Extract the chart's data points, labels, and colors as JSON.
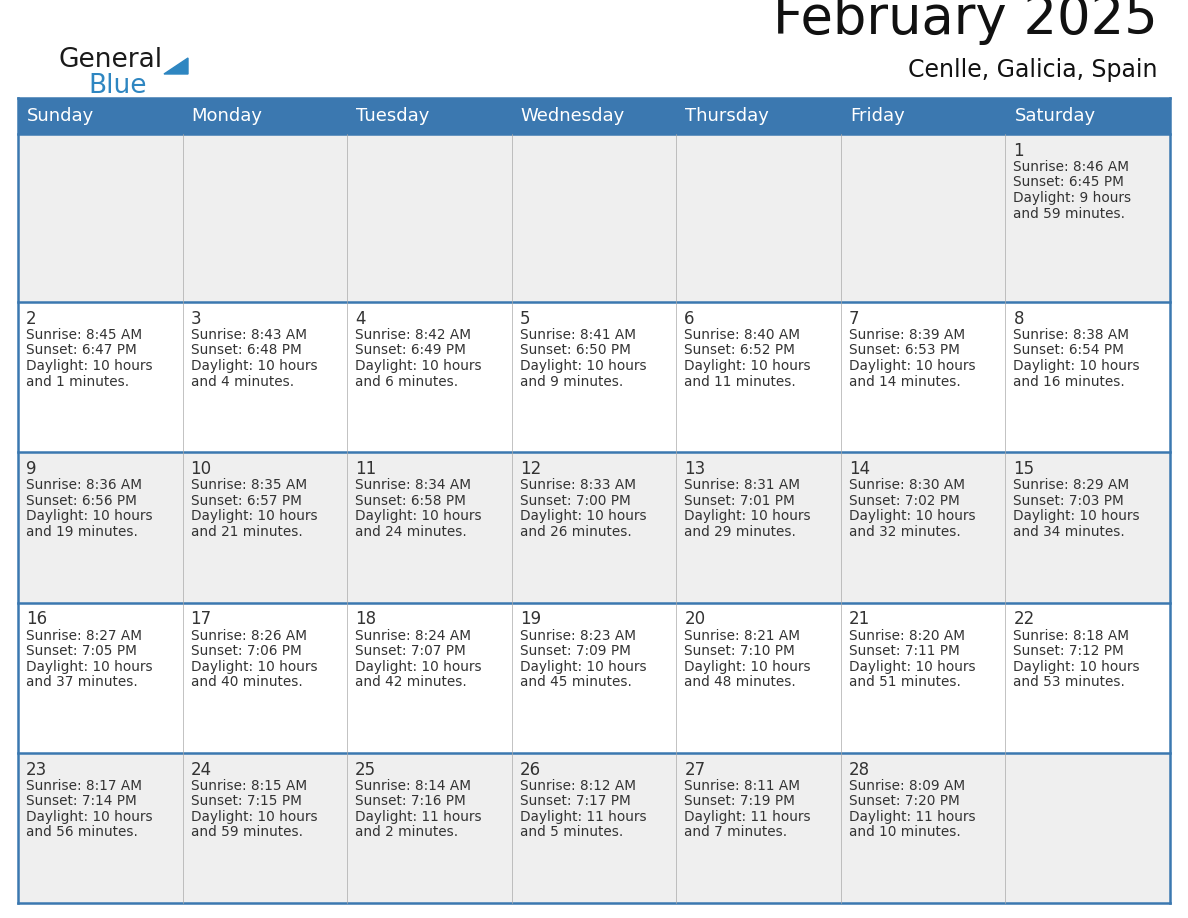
{
  "title": "February 2025",
  "subtitle": "Cenlle, Galicia, Spain",
  "header_bg": "#3b78b0",
  "header_text_color": "#ffffff",
  "cell_bg_row0": "#efefef",
  "cell_bg_row1": "#ffffff",
  "cell_bg_row2": "#efefef",
  "cell_bg_row3": "#ffffff",
  "cell_bg_row4": "#efefef",
  "grid_line_color": "#3b78b0",
  "text_color": "#333333",
  "day_number_color": "#333333",
  "days_of_week": [
    "Sunday",
    "Monday",
    "Tuesday",
    "Wednesday",
    "Thursday",
    "Friday",
    "Saturday"
  ],
  "logo_general_color": "#1a1a1a",
  "logo_blue_color": "#2e86c1",
  "title_fontsize": 38,
  "subtitle_fontsize": 17,
  "header_fontsize": 13,
  "day_num_fontsize": 12,
  "cell_text_fontsize": 9.8,
  "calendar_data": [
    [
      null,
      null,
      null,
      null,
      null,
      null,
      {
        "day": 1,
        "sunrise": "8:46 AM",
        "sunset": "6:45 PM",
        "daylight_hours": 9,
        "daylight_minutes": 59
      }
    ],
    [
      {
        "day": 2,
        "sunrise": "8:45 AM",
        "sunset": "6:47 PM",
        "daylight_hours": 10,
        "daylight_minutes": 1
      },
      {
        "day": 3,
        "sunrise": "8:43 AM",
        "sunset": "6:48 PM",
        "daylight_hours": 10,
        "daylight_minutes": 4
      },
      {
        "day": 4,
        "sunrise": "8:42 AM",
        "sunset": "6:49 PM",
        "daylight_hours": 10,
        "daylight_minutes": 6
      },
      {
        "day": 5,
        "sunrise": "8:41 AM",
        "sunset": "6:50 PM",
        "daylight_hours": 10,
        "daylight_minutes": 9
      },
      {
        "day": 6,
        "sunrise": "8:40 AM",
        "sunset": "6:52 PM",
        "daylight_hours": 10,
        "daylight_minutes": 11
      },
      {
        "day": 7,
        "sunrise": "8:39 AM",
        "sunset": "6:53 PM",
        "daylight_hours": 10,
        "daylight_minutes": 14
      },
      {
        "day": 8,
        "sunrise": "8:38 AM",
        "sunset": "6:54 PM",
        "daylight_hours": 10,
        "daylight_minutes": 16
      }
    ],
    [
      {
        "day": 9,
        "sunrise": "8:36 AM",
        "sunset": "6:56 PM",
        "daylight_hours": 10,
        "daylight_minutes": 19
      },
      {
        "day": 10,
        "sunrise": "8:35 AM",
        "sunset": "6:57 PM",
        "daylight_hours": 10,
        "daylight_minutes": 21
      },
      {
        "day": 11,
        "sunrise": "8:34 AM",
        "sunset": "6:58 PM",
        "daylight_hours": 10,
        "daylight_minutes": 24
      },
      {
        "day": 12,
        "sunrise": "8:33 AM",
        "sunset": "7:00 PM",
        "daylight_hours": 10,
        "daylight_minutes": 26
      },
      {
        "day": 13,
        "sunrise": "8:31 AM",
        "sunset": "7:01 PM",
        "daylight_hours": 10,
        "daylight_minutes": 29
      },
      {
        "day": 14,
        "sunrise": "8:30 AM",
        "sunset": "7:02 PM",
        "daylight_hours": 10,
        "daylight_minutes": 32
      },
      {
        "day": 15,
        "sunrise": "8:29 AM",
        "sunset": "7:03 PM",
        "daylight_hours": 10,
        "daylight_minutes": 34
      }
    ],
    [
      {
        "day": 16,
        "sunrise": "8:27 AM",
        "sunset": "7:05 PM",
        "daylight_hours": 10,
        "daylight_minutes": 37
      },
      {
        "day": 17,
        "sunrise": "8:26 AM",
        "sunset": "7:06 PM",
        "daylight_hours": 10,
        "daylight_minutes": 40
      },
      {
        "day": 18,
        "sunrise": "8:24 AM",
        "sunset": "7:07 PM",
        "daylight_hours": 10,
        "daylight_minutes": 42
      },
      {
        "day": 19,
        "sunrise": "8:23 AM",
        "sunset": "7:09 PM",
        "daylight_hours": 10,
        "daylight_minutes": 45
      },
      {
        "day": 20,
        "sunrise": "8:21 AM",
        "sunset": "7:10 PM",
        "daylight_hours": 10,
        "daylight_minutes": 48
      },
      {
        "day": 21,
        "sunrise": "8:20 AM",
        "sunset": "7:11 PM",
        "daylight_hours": 10,
        "daylight_minutes": 51
      },
      {
        "day": 22,
        "sunrise": "8:18 AM",
        "sunset": "7:12 PM",
        "daylight_hours": 10,
        "daylight_minutes": 53
      }
    ],
    [
      {
        "day": 23,
        "sunrise": "8:17 AM",
        "sunset": "7:14 PM",
        "daylight_hours": 10,
        "daylight_minutes": 56
      },
      {
        "day": 24,
        "sunrise": "8:15 AM",
        "sunset": "7:15 PM",
        "daylight_hours": 10,
        "daylight_minutes": 59
      },
      {
        "day": 25,
        "sunrise": "8:14 AM",
        "sunset": "7:16 PM",
        "daylight_hours": 11,
        "daylight_minutes": 2
      },
      {
        "day": 26,
        "sunrise": "8:12 AM",
        "sunset": "7:17 PM",
        "daylight_hours": 11,
        "daylight_minutes": 5
      },
      {
        "day": 27,
        "sunrise": "8:11 AM",
        "sunset": "7:19 PM",
        "daylight_hours": 11,
        "daylight_minutes": 7
      },
      {
        "day": 28,
        "sunrise": "8:09 AM",
        "sunset": "7:20 PM",
        "daylight_hours": 11,
        "daylight_minutes": 10
      },
      null
    ]
  ]
}
